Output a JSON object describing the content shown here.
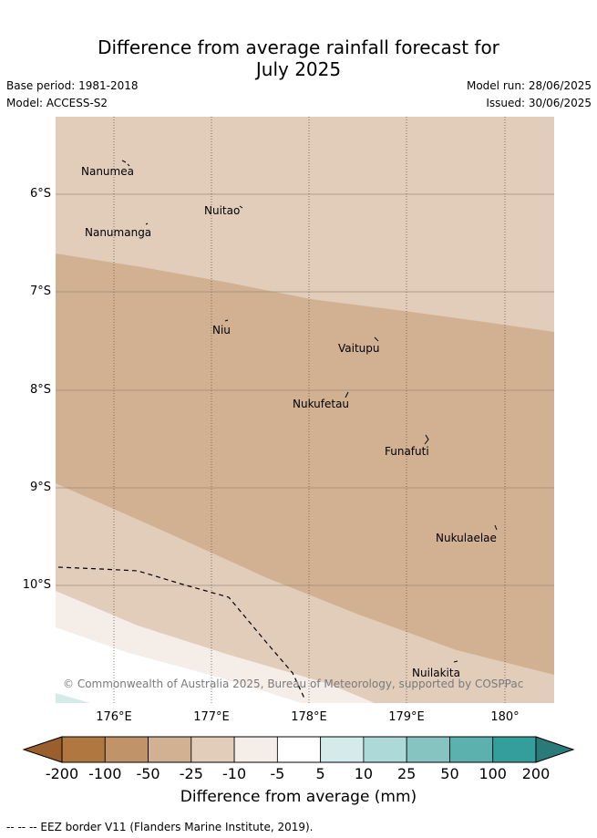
{
  "title_line1": "Difference from average rainfall forecast for",
  "title_line2": "July 2025",
  "base_period": "Base period: 1981-2018",
  "model": "Model: ACCESS-S2",
  "model_run": "Model run: 28/06/2025",
  "issued": "Issued: 30/06/2025",
  "lat_labels": [
    "6°S",
    "7°S",
    "8°S",
    "9°S",
    "10°S"
  ],
  "lon_labels": [
    "176°E",
    "177°E",
    "178°E",
    "179°E",
    "180°"
  ],
  "places": [
    "Nanumea",
    "Nuitao",
    "Nanumanga",
    "Niu",
    "Vaitupu",
    "Nukufetau",
    "Funafuti",
    "Nukulaelae",
    "Nuilakita"
  ],
  "copyright": "© Commonwealth of Australia 2025, Bureau of Meteorology, supported by COSPPac",
  "colorbar": {
    "ticks": [
      "-200",
      "-100",
      "-50",
      "-25",
      "-10",
      "-5",
      "5",
      "10",
      "25",
      "50",
      "100",
      "200"
    ],
    "colors": [
      "#b07840",
      "#c09468",
      "#d1b192",
      "#e2cdbb",
      "#f5ede8",
      "#ffffff",
      "#d5ebea",
      "#add9d8",
      "#86c4c2",
      "#5cb0ae",
      "#339e9c"
    ],
    "under_color": "#9b5f2e",
    "over_color": "#2a7a7a",
    "label": "Difference from average (mm)"
  },
  "footer": "-- -- -- EEZ border V11 (Flanders Marine Institute, 2019).",
  "chart_data": {
    "type": "heatmap",
    "title": "Difference from average rainfall forecast for July 2025",
    "xlabel": "",
    "ylabel": "",
    "lon_range": [
      175.4,
      180.5
    ],
    "lat_range": [
      -11.2,
      -5.2
    ],
    "units": "mm",
    "levels": [
      -200,
      -100,
      -50,
      -25,
      -10,
      -5,
      5,
      10,
      25,
      50,
      100,
      200
    ],
    "regions": [
      {
        "level": "-25 to -10",
        "area": "north"
      },
      {
        "level": "-50 to -25",
        "area": "central band"
      },
      {
        "level": "-25 to -10",
        "area": "south"
      },
      {
        "level": "-10 to -5",
        "area": "far south strip"
      },
      {
        "level": "-5 to 5",
        "area": "southwest corner"
      },
      {
        "level": "5 to 10",
        "area": "southwest edge"
      }
    ]
  }
}
